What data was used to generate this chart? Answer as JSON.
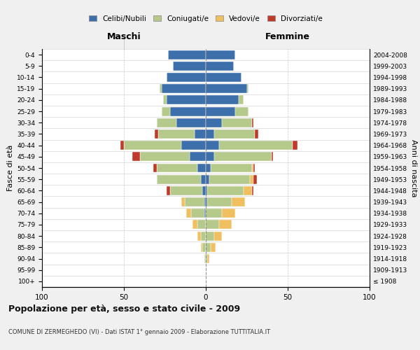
{
  "age_groups": [
    "100+",
    "95-99",
    "90-94",
    "85-89",
    "80-84",
    "75-79",
    "70-74",
    "65-69",
    "60-64",
    "55-59",
    "50-54",
    "45-49",
    "40-44",
    "35-39",
    "30-34",
    "25-29",
    "20-24",
    "15-19",
    "10-14",
    "5-9",
    "0-4"
  ],
  "birth_years": [
    "≤ 1908",
    "1909-1913",
    "1914-1918",
    "1919-1923",
    "1924-1928",
    "1929-1933",
    "1934-1938",
    "1939-1943",
    "1944-1948",
    "1949-1953",
    "1954-1958",
    "1959-1963",
    "1964-1968",
    "1969-1973",
    "1974-1978",
    "1979-1983",
    "1984-1988",
    "1989-1993",
    "1994-1998",
    "1999-2003",
    "2004-2008"
  ],
  "maschi_celibe": [
    0,
    0,
    0,
    0,
    0,
    0,
    1,
    1,
    2,
    3,
    5,
    10,
    15,
    7,
    18,
    22,
    24,
    27,
    24,
    20,
    23
  ],
  "maschi_coniug": [
    0,
    0,
    1,
    2,
    3,
    5,
    8,
    12,
    20,
    27,
    25,
    30,
    35,
    22,
    12,
    5,
    2,
    1,
    0,
    0,
    0
  ],
  "maschi_vedovo": [
    0,
    0,
    0,
    1,
    2,
    3,
    3,
    2,
    0,
    0,
    0,
    0,
    0,
    0,
    0,
    0,
    0,
    0,
    0,
    0,
    0
  ],
  "maschi_divor": [
    0,
    0,
    0,
    0,
    0,
    0,
    0,
    0,
    2,
    0,
    2,
    5,
    2,
    2,
    0,
    0,
    0,
    0,
    0,
    0,
    0
  ],
  "femmine_nubile": [
    0,
    0,
    0,
    0,
    0,
    0,
    0,
    1,
    1,
    2,
    3,
    5,
    8,
    5,
    10,
    18,
    20,
    25,
    22,
    17,
    18
  ],
  "femmine_coniug": [
    0,
    0,
    1,
    3,
    5,
    8,
    10,
    15,
    22,
    25,
    25,
    35,
    45,
    25,
    18,
    8,
    3,
    1,
    0,
    0,
    0
  ],
  "femmine_vedova": [
    0,
    0,
    1,
    3,
    5,
    8,
    8,
    8,
    5,
    2,
    1,
    0,
    0,
    0,
    0,
    0,
    0,
    0,
    0,
    0,
    0
  ],
  "femmine_divor": [
    0,
    0,
    0,
    0,
    0,
    0,
    0,
    0,
    1,
    2,
    1,
    1,
    3,
    2,
    1,
    0,
    0,
    0,
    0,
    0,
    0
  ],
  "c_celibe": "#3d6faa",
  "c_coniug": "#b5c98a",
  "c_vedovo": "#f0c060",
  "c_divor": "#c0392b",
  "title": "Popolazione per età, sesso e stato civile - 2009",
  "subtitle": "COMUNE DI ZERMEGHEDO (VI) - Dati ISTAT 1° gennaio 2009 - Elaborazione TUTTITALIA.IT",
  "bg_color": "#f0f0f0",
  "plot_bg": "#ffffff"
}
